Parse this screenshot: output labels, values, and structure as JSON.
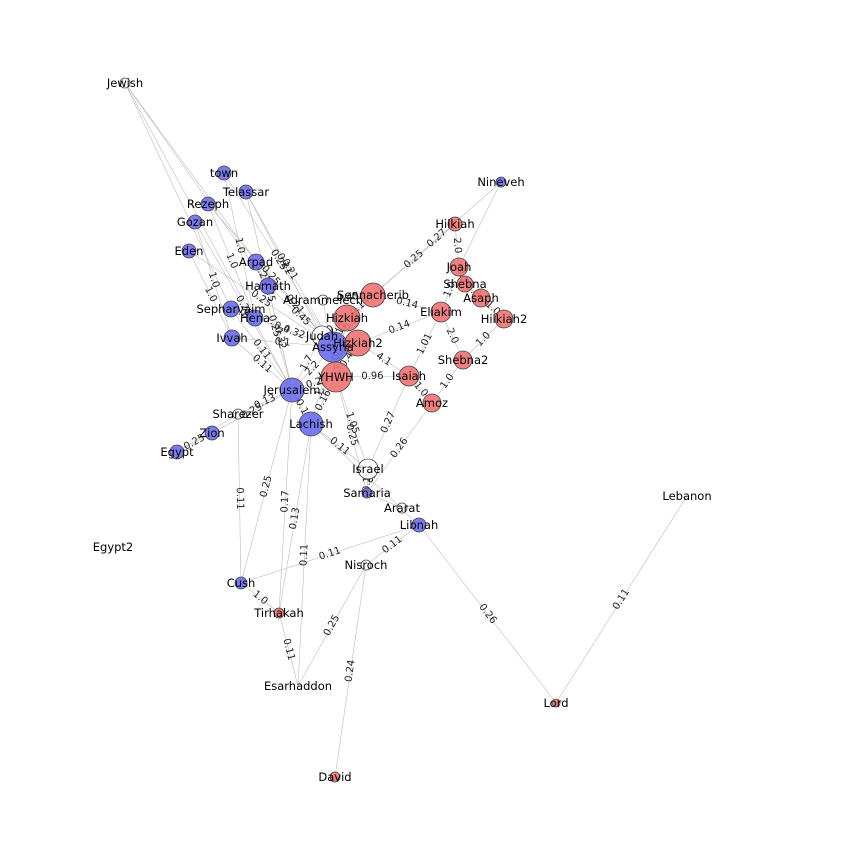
{
  "colors": {
    "place": "#6b6bf0",
    "person": "#f07272",
    "neutral": "#ffffff",
    "edge": "#bdbdbd"
  },
  "nodes": [
    {
      "id": "Jewish",
      "label": "Jewish",
      "type": "neutral"
    },
    {
      "id": "town",
      "label": "town",
      "type": "place"
    },
    {
      "id": "Telassar",
      "label": "Telassar",
      "type": "place"
    },
    {
      "id": "Rezeph",
      "label": "Rezeph",
      "type": "place"
    },
    {
      "id": "Gozan",
      "label": "Gozan",
      "type": "place"
    },
    {
      "id": "Eden",
      "label": "Eden",
      "type": "place"
    },
    {
      "id": "Arpad",
      "label": "Arpad",
      "type": "place"
    },
    {
      "id": "Hamath",
      "label": "Hamath",
      "type": "place"
    },
    {
      "id": "Adrammelech",
      "label": "Adrammelech",
      "type": "neutral"
    },
    {
      "id": "Sepharvaim",
      "label": "Sepharvaim",
      "type": "place"
    },
    {
      "id": "Hena",
      "label": "Hena",
      "type": "place"
    },
    {
      "id": "Ivvah",
      "label": "Ivvah",
      "type": "place"
    },
    {
      "id": "Judah",
      "label": "Judah",
      "type": "neutral"
    },
    {
      "id": "Assyria",
      "label": "Assyria",
      "type": "place"
    },
    {
      "id": "Hizkiah",
      "label": "Hizkiah",
      "type": "person"
    },
    {
      "id": "Hizkiah2b",
      "label": "Hizkiah2",
      "type": "person"
    },
    {
      "id": "Sennacherib",
      "label": "Sennacherib",
      "type": "person"
    },
    {
      "id": "YHWH",
      "label": "YHWH",
      "type": "person"
    },
    {
      "id": "Jerusalem",
      "label": "Jerusalem",
      "type": "place"
    },
    {
      "id": "Lachish",
      "label": "Lachish",
      "type": "place"
    },
    {
      "id": "Sharezer",
      "label": "Sharezer",
      "type": "neutral"
    },
    {
      "id": "Zion",
      "label": "Zion",
      "type": "place"
    },
    {
      "id": "Egypt",
      "label": "Egypt",
      "type": "place"
    },
    {
      "id": "Israel",
      "label": "Israel",
      "type": "neutral"
    },
    {
      "id": "Samaria",
      "label": "Samaria",
      "type": "place"
    },
    {
      "id": "Ararat",
      "label": "Ararat",
      "type": "neutral"
    },
    {
      "id": "Libnah",
      "label": "Libnah",
      "type": "place"
    },
    {
      "id": "Egypt2",
      "label": "Egypt2",
      "type": "neutral"
    },
    {
      "id": "Nisroch",
      "label": "Nisroch",
      "type": "neutral"
    },
    {
      "id": "Cush",
      "label": "Cush",
      "type": "place"
    },
    {
      "id": "Tirhakah",
      "label": "Tirhakah",
      "type": "person"
    },
    {
      "id": "Esarhaddon",
      "label": "Esarhaddon",
      "type": "neutral"
    },
    {
      "id": "David",
      "label": "David",
      "type": "person"
    },
    {
      "id": "Nineveh",
      "label": "Nineveh",
      "type": "place"
    },
    {
      "id": "Hilkiah",
      "label": "Hilkiah",
      "type": "person"
    },
    {
      "id": "Joah",
      "label": "Joah",
      "type": "person"
    },
    {
      "id": "Shebna",
      "label": "Shebna",
      "type": "person"
    },
    {
      "id": "Asaph",
      "label": "Asaph",
      "type": "person"
    },
    {
      "id": "Hilkiah2",
      "label": "Hilkiah2",
      "type": "person"
    },
    {
      "id": "Eliakim",
      "label": "Eliakim",
      "type": "person"
    },
    {
      "id": "Shebna2",
      "label": "Shebna2",
      "type": "person"
    },
    {
      "id": "Isaiah",
      "label": "Isaiah",
      "type": "person"
    },
    {
      "id": "Amoz",
      "label": "Amoz",
      "type": "person"
    },
    {
      "id": "Lebanon",
      "label": "Lebanon",
      "type": "neutral"
    },
    {
      "id": "Lord",
      "label": "Lord",
      "type": "person"
    }
  ],
  "edges": [
    {
      "s": "Jewish",
      "t": "Arpad",
      "w": ""
    },
    {
      "s": "Jewish",
      "t": "Hamath",
      "w": ""
    },
    {
      "s": "Jewish",
      "t": "Sepharvaim",
      "w": ""
    },
    {
      "s": "Jewish",
      "t": "Jerusalem",
      "w": ""
    },
    {
      "s": "town",
      "t": "Hena",
      "w": "1.0"
    },
    {
      "s": "town",
      "t": "Assyria",
      "w": "0.25"
    },
    {
      "s": "Telassar",
      "t": "Jerusalem",
      "w": "0.25"
    },
    {
      "s": "Telassar",
      "t": "Assyria",
      "w": "0.21"
    },
    {
      "s": "Telassar",
      "t": "Judah",
      "w": "0.21"
    },
    {
      "s": "Rezeph",
      "t": "Hena",
      "w": "1.0"
    },
    {
      "s": "Rezeph",
      "t": "Assyria",
      "w": "0.25"
    },
    {
      "s": "Gozan",
      "t": "Ivvah",
      "w": "1.0"
    },
    {
      "s": "Gozan",
      "t": "Jerusalem",
      "w": "0.25"
    },
    {
      "s": "Eden",
      "t": "Ivvah",
      "w": "1.0"
    },
    {
      "s": "Eden",
      "t": "Assyria",
      "w": "0.25"
    },
    {
      "s": "Arpad",
      "t": "Hamath",
      "w": "0.25"
    },
    {
      "s": "Arpad",
      "t": "Assyria",
      "w": "0.21"
    },
    {
      "s": "Arpad",
      "t": "Jerusalem",
      "w": "0.25"
    },
    {
      "s": "Hamath",
      "t": "Assyria",
      "w": "0.45"
    },
    {
      "s": "Hamath",
      "t": "Jerusalem",
      "w": "0.32"
    },
    {
      "s": "Adrammelech",
      "t": "Sennacherib",
      "w": "0.45"
    },
    {
      "s": "Adrammelech",
      "t": "YHWH",
      "w": "1.74"
    },
    {
      "s": "Sepharvaim",
      "t": "Hena",
      "w": "0.25"
    },
    {
      "s": "Sepharvaim",
      "t": "Assyria",
      "w": "0.4"
    },
    {
      "s": "Sepharvaim",
      "t": "Jerusalem",
      "w": "0.11"
    },
    {
      "s": "Hena",
      "t": "Assyria",
      "w": "0.32"
    },
    {
      "s": "Ivvah",
      "t": "Jerusalem",
      "w": "0.11"
    },
    {
      "s": "Ivvah",
      "t": "Assyria",
      "w": "0.1"
    },
    {
      "s": "Judah",
      "t": "Hizkiah",
      "w": "0.4"
    },
    {
      "s": "Judah",
      "t": "Jerusalem",
      "w": "1.7"
    },
    {
      "s": "Assyria",
      "t": "Hizkiah",
      "w": "1.12"
    },
    {
      "s": "Assyria",
      "t": "Sennacherib",
      "w": "0.27"
    },
    {
      "s": "Assyria",
      "t": "YHWH",
      "w": "0.4"
    },
    {
      "s": "Assyria",
      "t": "Jerusalem",
      "w": "2.2"
    },
    {
      "s": "Assyria",
      "t": "Lachish",
      "w": "1.15"
    },
    {
      "s": "Hizkiah",
      "t": "Sennacherib",
      "w": "0.14"
    },
    {
      "s": "Hizkiah",
      "t": "YHWH",
      "w": "0.3"
    },
    {
      "s": "Hizkiah2b",
      "t": "Isaiah",
      "w": "4.1"
    },
    {
      "s": "Hizkiah2b",
      "t": "YHWH",
      "w": "0.4"
    },
    {
      "s": "Hizkiah2b",
      "t": "Eliakim",
      "w": "0.14"
    },
    {
      "s": "Sennacherib",
      "t": "Nineveh",
      "w": "0.27"
    },
    {
      "s": "Sennacherib",
      "t": "Eliakim",
      "w": "0.14"
    },
    {
      "s": "Sennacherib",
      "t": "Hilkiah",
      "w": "0.25"
    },
    {
      "s": "YHWH",
      "t": "Isaiah",
      "w": "0.96"
    },
    {
      "s": "YHWH",
      "t": "Jerusalem",
      "w": "0.2"
    },
    {
      "s": "YHWH",
      "t": "Lachish",
      "w": "0.16"
    },
    {
      "s": "YHWH",
      "t": "Israel",
      "w": "1.05"
    },
    {
      "s": "YHWH",
      "t": "Samaria",
      "w": "0.25"
    },
    {
      "s": "Jerusalem",
      "t": "Sharezer",
      "w": "0.13"
    },
    {
      "s": "Jerusalem",
      "t": "Zion",
      "w": "0.25"
    },
    {
      "s": "Jerusalem",
      "t": "Lachish",
      "w": "0.1"
    },
    {
      "s": "Jerusalem",
      "t": "Cush",
      "w": "0.25"
    },
    {
      "s": "Jerusalem",
      "t": "Tirhakah",
      "w": "0.17"
    },
    {
      "s": "Lachish",
      "t": "Tirhakah",
      "w": "0.13"
    },
    {
      "s": "Lachish",
      "t": "Esarhaddon",
      "w": "0.11"
    },
    {
      "s": "Lachish",
      "t": "Libnah",
      "w": "0.25"
    },
    {
      "s": "Lachish",
      "t": "Israel",
      "w": "0.11"
    },
    {
      "s": "Sharezer",
      "t": "Egypt",
      "w": ""
    },
    {
      "s": "Zion",
      "t": "Egypt",
      "w": "0.25"
    },
    {
      "s": "Israel",
      "t": "Samaria",
      "w": "0.15"
    },
    {
      "s": "Isaiah",
      "t": "Israel",
      "w": "0.27"
    },
    {
      "s": "Amoz",
      "t": "Samaria",
      "w": "0.26"
    },
    {
      "s": "Samaria",
      "t": "Ararat",
      "w": ""
    },
    {
      "s": "Libnah",
      "t": "Cush",
      "w": "0.11"
    },
    {
      "s": "Libnah",
      "t": "Lord",
      "w": "0.26"
    },
    {
      "s": "Libnah",
      "t": "Nisroch",
      "w": "0.11"
    },
    {
      "s": "Nisroch",
      "t": "David",
      "w": "0.24"
    },
    {
      "s": "Nisroch",
      "t": "Esarhaddon",
      "w": "0.25"
    },
    {
      "s": "Cush",
      "t": "Tirhakah",
      "w": "1.0"
    },
    {
      "s": "Tirhakah",
      "t": "Esarhaddon",
      "w": "0.11"
    },
    {
      "s": "Sharezer",
      "t": "Cush",
      "w": "0.11"
    },
    {
      "s": "Hilkiah",
      "t": "Joah",
      "w": "2.0"
    },
    {
      "s": "Joah",
      "t": "Shebna",
      "w": "0.5"
    },
    {
      "s": "Joah",
      "t": "Eliakim",
      "w": "1.0"
    },
    {
      "s": "Shebna",
      "t": "Asaph",
      "w": "0.8"
    },
    {
      "s": "Asaph",
      "t": "Hilkiah2",
      "w": "1.0"
    },
    {
      "s": "Eliakim",
      "t": "Shebna2",
      "w": "2.0"
    },
    {
      "s": "Eliakim",
      "t": "Isaiah",
      "w": "1.01"
    },
    {
      "s": "Shebna2",
      "t": "Hilkiah2",
      "w": "1.0"
    },
    {
      "s": "Isaiah",
      "t": "Amoz",
      "w": "1.0"
    },
    {
      "s": "Amoz",
      "t": "Shebna2",
      "w": "1.0"
    },
    {
      "s": "Nineveh",
      "t": "Joah",
      "w": ""
    },
    {
      "s": "Lebanon",
      "t": "Lord",
      "w": "0.11"
    }
  ]
}
